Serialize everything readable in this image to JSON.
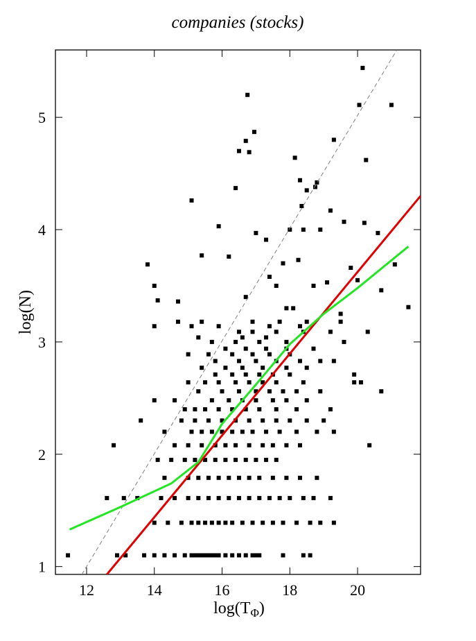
{
  "chart_data": {
    "type": "scatter",
    "title": "companies (stocks)",
    "xlabel_base": "log(T",
    "xlabel_sub": "Φ",
    "xlabel_end": ")",
    "ylabel": "log(N)",
    "xlim": [
      11.08,
      21.86
    ],
    "ylim": [
      0.93,
      5.6
    ],
    "xticks": [
      12,
      14,
      16,
      18,
      20
    ],
    "yticks": [
      1,
      2,
      3,
      4,
      5
    ],
    "grid": false,
    "series": [
      {
        "kind": "points",
        "color": "#000000",
        "x": [
          11.45,
          12.9,
          13.15,
          13.7,
          14.0,
          14.3,
          14.6,
          14.9,
          15.1,
          15.2,
          15.3,
          15.4,
          15.5,
          15.6,
          15.7,
          15.8,
          15.9,
          16.1,
          16.3,
          16.5,
          16.7,
          16.9,
          17.1,
          17.0,
          17.8,
          18.4,
          18.6,
          14.0,
          14.4,
          14.8,
          15.1,
          15.3,
          15.5,
          15.7,
          15.9,
          16.1,
          16.3,
          16.6,
          16.9,
          17.2,
          17.5,
          17.8,
          18.2,
          18.6,
          18.9,
          19.3,
          12.6,
          13.1,
          13.5,
          14.2,
          14.6,
          15.0,
          15.3,
          15.6,
          15.9,
          16.2,
          16.5,
          16.8,
          17.1,
          17.4,
          17.7,
          18.0,
          18.4,
          18.7,
          19.2,
          14.3,
          15.0,
          15.3,
          15.6,
          15.9,
          16.2,
          16.5,
          16.8,
          17.1,
          17.5,
          17.9,
          18.3,
          18.8,
          14.1,
          14.5,
          14.9,
          15.2,
          15.5,
          15.8,
          16.1,
          16.4,
          16.7,
          17.0,
          17.3,
          17.6,
          12.8,
          14.6,
          15.0,
          15.4,
          15.8,
          16.1,
          16.4,
          16.8,
          17.2,
          17.5,
          17.9,
          18.3,
          20.35,
          14.3,
          15.1,
          15.4,
          15.7,
          16.0,
          16.3,
          16.6,
          16.9,
          17.3,
          17.7,
          18.2,
          18.8,
          19.3,
          13.6,
          14.8,
          15.2,
          15.6,
          16.0,
          16.4,
          16.8,
          17.2,
          17.6,
          18.0,
          18.5,
          19.0,
          14.9,
          15.2,
          15.5,
          15.9,
          16.3,
          16.7,
          17.1,
          17.6,
          18.2,
          19.2,
          14.0,
          14.6,
          15.7,
          16.2,
          16.6,
          17.0,
          17.5,
          17.9,
          18.5,
          15.3,
          16.0,
          16.5,
          17.0,
          17.4,
          17.8,
          18.2,
          18.9,
          20.7,
          15.0,
          15.5,
          15.9,
          16.4,
          16.8,
          17.2,
          17.6,
          18.4,
          19.9,
          20.1,
          15.8,
          16.3,
          16.7,
          17.1,
          17.5,
          18.0,
          19.9,
          15.4,
          16.1,
          16.6,
          17.2,
          17.9,
          18.5,
          15.8,
          16.5,
          17.0,
          17.6,
          18.3,
          18.9,
          19.3,
          15.0,
          15.6,
          16.3,
          16.9,
          17.4,
          18.0,
          16.1,
          16.7,
          17.3,
          17.9,
          18.7,
          15.7,
          16.4,
          17.1,
          17.9,
          19.6,
          15.3,
          16.6,
          17.3,
          16.5,
          16.9,
          17.6,
          18.4,
          19.2,
          20.3,
          14.0,
          15.1,
          15.9,
          17.4,
          18.3,
          14.7,
          15.4,
          16.9,
          17.7,
          18.5,
          19.5,
          13.8,
          14.0,
          14.1,
          14.7,
          15.1,
          15.4,
          15.9,
          16.2,
          16.4,
          16.5,
          16.7,
          16.75,
          16.8,
          16.95,
          16.7,
          17.0,
          17.3,
          17.4,
          17.6,
          17.8,
          18.0,
          18.15,
          18.25,
          18.3,
          18.35,
          18.4,
          18.5,
          18.7,
          18.75,
          18.8,
          18.9,
          19.2,
          19.3,
          19.6,
          19.8,
          20.0,
          20.05,
          20.15,
          20.2,
          20.25,
          20.6,
          20.7,
          21.0,
          21.1,
          21.5,
          19.1,
          18.1,
          17.9,
          19.5
        ],
        "values": [
          1.1,
          1.1,
          1.1,
          1.1,
          1.1,
          1.1,
          1.1,
          1.1,
          1.1,
          1.1,
          1.1,
          1.1,
          1.1,
          1.1,
          1.1,
          1.1,
          1.1,
          1.1,
          1.1,
          1.1,
          1.1,
          1.1,
          1.1,
          1.1,
          1.1,
          1.1,
          1.1,
          1.39,
          1.39,
          1.39,
          1.39,
          1.39,
          1.39,
          1.39,
          1.39,
          1.39,
          1.39,
          1.39,
          1.39,
          1.39,
          1.39,
          1.39,
          1.39,
          1.39,
          1.39,
          1.39,
          1.61,
          1.61,
          1.61,
          1.61,
          1.61,
          1.61,
          1.61,
          1.61,
          1.61,
          1.61,
          1.61,
          1.61,
          1.61,
          1.61,
          1.61,
          1.61,
          1.61,
          1.61,
          1.61,
          1.79,
          1.79,
          1.79,
          1.79,
          1.79,
          1.79,
          1.79,
          1.79,
          1.79,
          1.79,
          1.79,
          1.79,
          1.79,
          1.95,
          1.95,
          1.95,
          1.95,
          1.95,
          1.95,
          1.95,
          1.95,
          1.95,
          1.95,
          1.95,
          1.95,
          2.08,
          2.08,
          2.08,
          2.08,
          2.08,
          2.08,
          2.08,
          2.08,
          2.08,
          2.08,
          2.08,
          2.08,
          2.08,
          2.2,
          2.2,
          2.2,
          2.2,
          2.2,
          2.2,
          2.2,
          2.2,
          2.2,
          2.2,
          2.2,
          2.2,
          2.2,
          2.3,
          2.3,
          2.3,
          2.3,
          2.3,
          2.3,
          2.3,
          2.3,
          2.3,
          2.3,
          2.3,
          2.3,
          2.4,
          2.4,
          2.4,
          2.4,
          2.4,
          2.4,
          2.4,
          2.4,
          2.4,
          2.4,
          2.48,
          2.48,
          2.48,
          2.48,
          2.48,
          2.48,
          2.48,
          2.48,
          2.48,
          2.56,
          2.56,
          2.56,
          2.56,
          2.56,
          2.56,
          2.56,
          2.56,
          2.56,
          2.64,
          2.64,
          2.64,
          2.64,
          2.64,
          2.64,
          2.64,
          2.64,
          2.64,
          2.64,
          2.71,
          2.71,
          2.71,
          2.71,
          2.71,
          2.71,
          2.71,
          2.77,
          2.77,
          2.77,
          2.77,
          2.77,
          2.77,
          2.83,
          2.83,
          2.83,
          2.83,
          2.83,
          2.83,
          2.83,
          2.89,
          2.89,
          2.89,
          2.89,
          2.89,
          2.89,
          2.94,
          2.94,
          2.94,
          2.94,
          2.94,
          3.0,
          3.0,
          3.0,
          3.0,
          3.0,
          3.04,
          3.04,
          3.04,
          3.09,
          3.09,
          3.09,
          3.09,
          3.09,
          3.09,
          3.14,
          3.14,
          3.14,
          3.14,
          3.14,
          3.18,
          3.18,
          3.18,
          3.18,
          3.18,
          3.18,
          3.69,
          3.5,
          3.37,
          3.36,
          4.26,
          3.77,
          4.03,
          3.76,
          4.37,
          4.7,
          4.79,
          5.2,
          4.69,
          4.87,
          3.4,
          3.97,
          3.91,
          3.58,
          3.5,
          3.7,
          4.0,
          4.64,
          3.73,
          4.44,
          4.21,
          4.0,
          4.35,
          3.5,
          4.38,
          4.42,
          4.0,
          4.17,
          4.8,
          4.07,
          3.66,
          3.55,
          5.11,
          5.44,
          4.06,
          4.62,
          3.97,
          3.46,
          5.11,
          3.69,
          3.31,
          3.53,
          3.3,
          3.3,
          3.25
        ]
      },
      {
        "kind": "line",
        "style": "dashed",
        "color": "#808080",
        "x": [
          11.86,
          21.16
        ],
        "values": [
          0.93,
          5.6
        ]
      },
      {
        "kind": "line",
        "style": "solid",
        "color": "#e00000",
        "x": [
          12.6,
          21.86
        ],
        "values": [
          0.93,
          4.3
        ]
      },
      {
        "kind": "line",
        "style": "solid",
        "color": "#22e622",
        "x": [
          11.5,
          13.0,
          14.5,
          15.3,
          16.0,
          17.0,
          18.0,
          19.0,
          20.0,
          21.5
        ],
        "values": [
          1.33,
          1.53,
          1.74,
          1.93,
          2.27,
          2.62,
          2.98,
          3.25,
          3.48,
          3.85
        ]
      }
    ]
  }
}
